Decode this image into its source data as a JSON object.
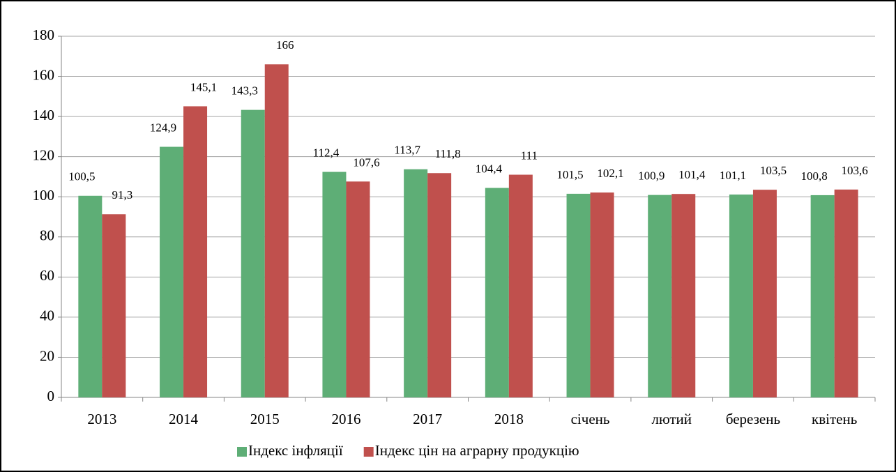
{
  "chart_data": {
    "type": "bar",
    "categories": [
      "2013",
      "2014",
      "2015",
      "2016",
      "2017",
      "2018",
      "січень",
      "лютий",
      "березень",
      "квітень"
    ],
    "series": [
      {
        "name": "Індекс інфляції",
        "color": "#5eae76",
        "values": [
          100.5,
          124.9,
          143.3,
          112.4,
          113.7,
          104.4,
          101.5,
          100.9,
          101.1,
          100.8
        ],
        "value_labels": [
          "100,5",
          "124,9",
          "143,3",
          "112,4",
          "113,7",
          "104,4",
          "101,5",
          "100,9",
          "101,1",
          "100,8"
        ]
      },
      {
        "name": "Індекс цін на аграрну продукцію",
        "color": "#c0504d",
        "values": [
          91.3,
          145.1,
          166,
          107.6,
          111.8,
          111,
          102.1,
          101.4,
          103.5,
          103.6
        ],
        "value_labels": [
          "91,3",
          "145,1",
          "166",
          "107,6",
          "111,8",
          "111",
          "102,1",
          "101,4",
          "103,5",
          "103,6"
        ]
      }
    ],
    "ylim": [
      0,
      180
    ],
    "yticks": [
      0,
      20,
      40,
      60,
      80,
      100,
      120,
      140,
      160,
      180
    ],
    "grid": true,
    "legend": "bottom"
  }
}
